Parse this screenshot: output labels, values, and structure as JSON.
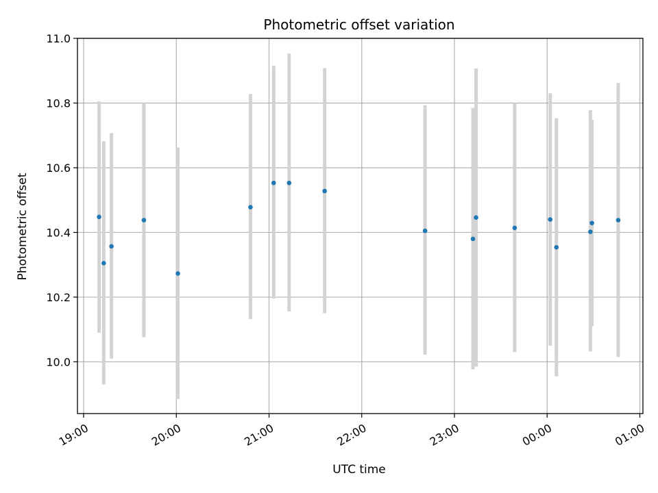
{
  "chart_data": {
    "type": "scatter",
    "title": "Photometric offset variation",
    "xlabel": "UTC time",
    "ylabel": "Photometric offset",
    "x_ticks": [
      "19:00",
      "20:00",
      "21:00",
      "22:00",
      "23:00",
      "00:00",
      "01:00"
    ],
    "y_ticks": [
      "10.0",
      "10.2",
      "10.4",
      "10.6",
      "10.8",
      "11.0"
    ],
    "ylim": [
      9.84,
      11.0
    ],
    "xlim": [
      "18:56",
      "01:02"
    ],
    "grid": true,
    "colors": {
      "point": "#1f77b4",
      "errorbar": "#d3d3d3",
      "grid": "#b0b0b0"
    },
    "points": [
      {
        "x": "19:10",
        "y": 10.448,
        "y_low": 10.09,
        "y_high": 10.805
      },
      {
        "x": "19:13",
        "y": 10.305,
        "y_low": 9.93,
        "y_high": 10.682
      },
      {
        "x": "19:18",
        "y": 10.357,
        "y_low": 10.01,
        "y_high": 10.707
      },
      {
        "x": "19:39",
        "y": 10.438,
        "y_low": 10.076,
        "y_high": 10.8
      },
      {
        "x": "20:01",
        "y": 10.273,
        "y_low": 9.885,
        "y_high": 10.663
      },
      {
        "x": "20:48",
        "y": 10.478,
        "y_low": 10.132,
        "y_high": 10.828
      },
      {
        "x": "21:03",
        "y": 10.553,
        "y_low": 10.196,
        "y_high": 10.915
      },
      {
        "x": "21:13",
        "y": 10.553,
        "y_low": 10.156,
        "y_high": 10.953
      },
      {
        "x": "21:36",
        "y": 10.528,
        "y_low": 10.15,
        "y_high": 10.908
      },
      {
        "x": "22:41",
        "y": 10.405,
        "y_low": 10.022,
        "y_high": 10.793
      },
      {
        "x": "23:12",
        "y": 10.38,
        "y_low": 9.977,
        "y_high": 10.785
      },
      {
        "x": "23:14",
        "y": 10.446,
        "y_low": 9.985,
        "y_high": 10.907
      },
      {
        "x": "23:39",
        "y": 10.414,
        "y_low": 10.03,
        "y_high": 10.8
      },
      {
        "x": "00:02",
        "y": 10.44,
        "y_low": 10.05,
        "y_high": 10.83
      },
      {
        "x": "00:06",
        "y": 10.354,
        "y_low": 9.955,
        "y_high": 10.753
      },
      {
        "x": "00:28",
        "y": 10.402,
        "y_low": 10.032,
        "y_high": 10.778
      },
      {
        "x": "00:29",
        "y": 10.429,
        "y_low": 10.11,
        "y_high": 10.748
      },
      {
        "x": "00:46",
        "y": 10.438,
        "y_low": 10.015,
        "y_high": 10.862
      }
    ]
  }
}
